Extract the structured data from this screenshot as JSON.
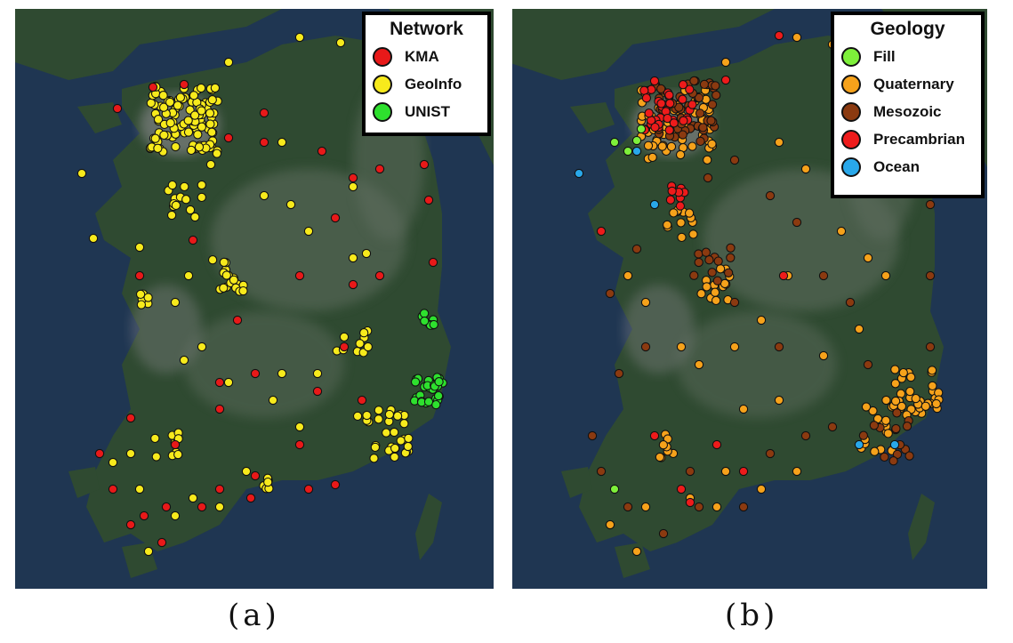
{
  "colors": {
    "ocean": "#1f3652",
    "land": "#2f4a31",
    "mountain": "#5f6d5e",
    "urban": "#8c8a8f"
  },
  "panel_a": {
    "legend": {
      "title": "Network",
      "items": [
        {
          "label": "KMA",
          "color": "#e81919"
        },
        {
          "label": "GeoInfo",
          "color": "#f7ea1c"
        },
        {
          "label": "UNIST",
          "color": "#2ee02e"
        }
      ]
    },
    "caption": "(a)"
  },
  "panel_b": {
    "legend": {
      "title": "Geology",
      "items": [
        {
          "label": "Fill",
          "color": "#7ef03a"
        },
        {
          "label": "Quaternary",
          "color": "#f6a21b"
        },
        {
          "label": "Mesozoic",
          "color": "#8b3a10"
        },
        {
          "label": "Precambrian",
          "color": "#ee1b1b"
        },
        {
          "label": "Ocean",
          "color": "#29a8ea"
        }
      ]
    },
    "caption": "(b)"
  }
}
